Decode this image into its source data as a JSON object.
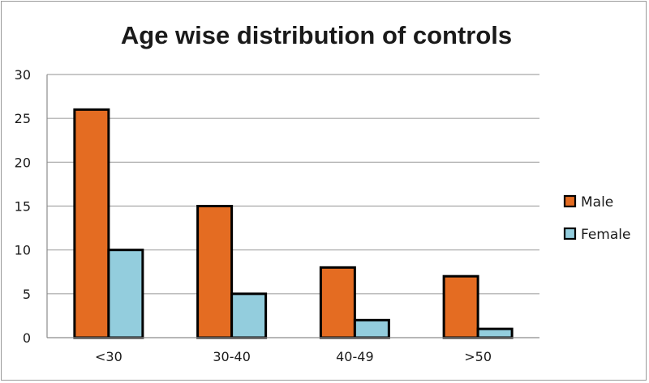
{
  "chart_data": {
    "type": "bar",
    "title": "Age wise distribution of controls",
    "xlabel": "",
    "ylabel": "",
    "categories": [
      "<30",
      "30-40",
      "40-49",
      ">50"
    ],
    "series": [
      {
        "name": "Male",
        "values": [
          26,
          15,
          8,
          7
        ],
        "color": "#E46C22"
      },
      {
        "name": "Female",
        "values": [
          10,
          5,
          2,
          1
        ],
        "color": "#93CDDD"
      }
    ],
    "ylim": [
      0,
      30
    ],
    "yticks": [
      0,
      5,
      10,
      15,
      20,
      25,
      30
    ],
    "grid": true,
    "legend_position": "right"
  }
}
